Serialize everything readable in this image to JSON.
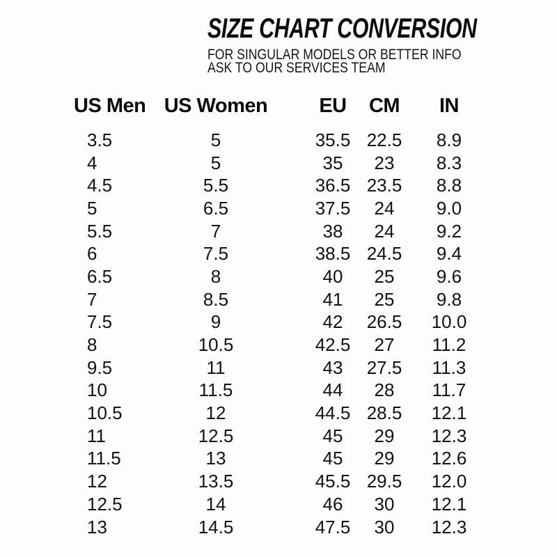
{
  "chart_data": {
    "type": "table",
    "title": "SIZE CHART CONVERSION",
    "subtitle_line1": "FOR SINGULAR MODELS OR BETTER INFO",
    "subtitle_line2": "ASK TO OUR SERVICES TEAM",
    "columns": [
      "US Men",
      "US Women",
      "EU",
      "CM",
      "IN"
    ],
    "rows": [
      [
        "3.5",
        "5",
        "35.5",
        "22.5",
        "8.9"
      ],
      [
        "4",
        "5",
        "35",
        "23",
        "8.3"
      ],
      [
        "4.5",
        "5.5",
        "36.5",
        "23.5",
        "8.8"
      ],
      [
        "5",
        "6.5",
        "37.5",
        "24",
        "9.0"
      ],
      [
        "5.5",
        "7",
        "38",
        "24",
        "9.2"
      ],
      [
        "6",
        "7.5",
        "38.5",
        "24.5",
        "9.4"
      ],
      [
        "6.5",
        "8",
        "40",
        "25",
        "9.6"
      ],
      [
        "7",
        "8.5",
        "41",
        "25",
        "9.8"
      ],
      [
        "7.5",
        "9",
        "42",
        "26.5",
        "10.0"
      ],
      [
        "8",
        "10.5",
        "42.5",
        "27",
        "11.2"
      ],
      [
        "9.5",
        "11",
        "43",
        "27.5",
        "11.3"
      ],
      [
        "10",
        "11.5",
        "44",
        "28",
        "11.7"
      ],
      [
        "10.5",
        "12",
        "44.5",
        "28.5",
        "12.1"
      ],
      [
        "11",
        "12.5",
        "45",
        "29",
        "12.3"
      ],
      [
        "11.5",
        "13",
        "45",
        "29",
        "12.6"
      ],
      [
        "12",
        "13.5",
        "45.5",
        "29.5",
        "12.0"
      ],
      [
        "12.5",
        "14",
        "46",
        "30",
        "12.1"
      ],
      [
        "13",
        "14.5",
        "47.5",
        "30",
        "12.3"
      ]
    ],
    "layout": {
      "grid": "off",
      "borders": "none",
      "text_color": "#101010",
      "background_color": "#fdfdfd"
    }
  }
}
